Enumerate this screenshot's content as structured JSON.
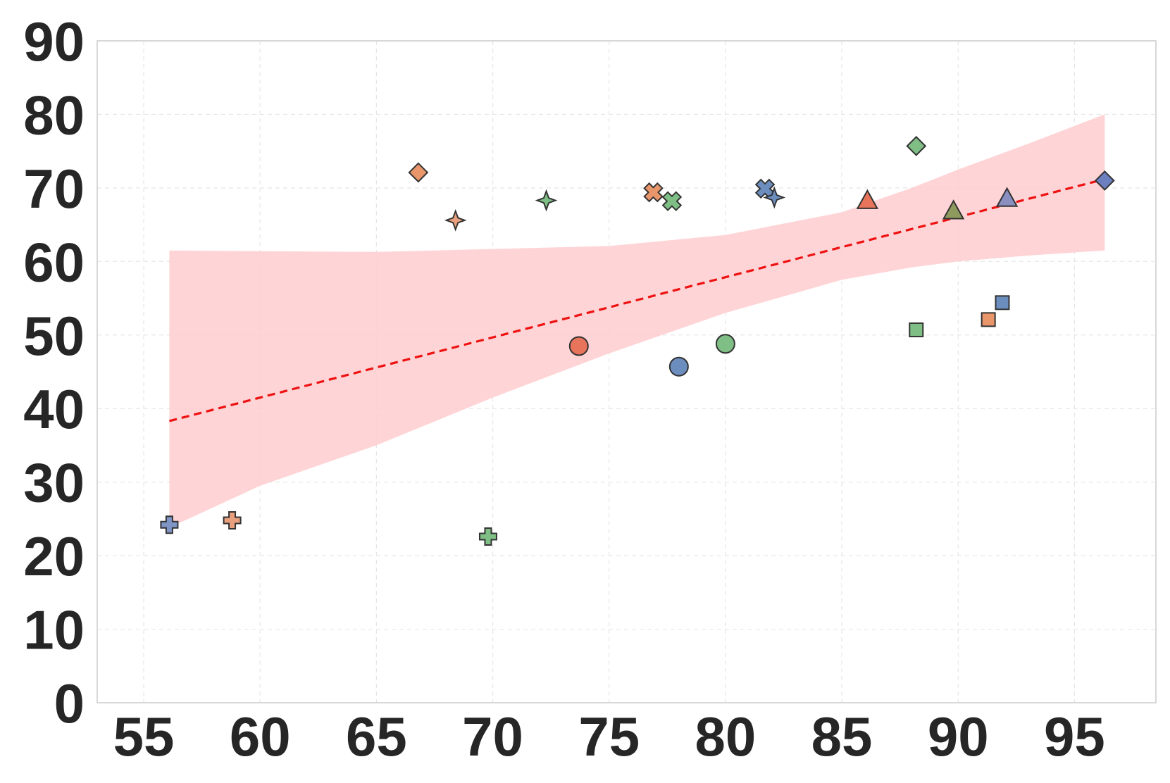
{
  "chart_data": {
    "type": "scatter",
    "title": "",
    "xlabel": "",
    "ylabel": "",
    "xlim": [
      53,
      98.5
    ],
    "ylim": [
      0,
      90
    ],
    "x_ticks": [
      "55",
      "60",
      "65",
      "70",
      "75",
      "80",
      "85",
      "90",
      "95"
    ],
    "y_ticks": [
      "0",
      "10",
      "20",
      "30",
      "40",
      "50",
      "60",
      "70",
      "80",
      "90"
    ],
    "grid": true,
    "legend": "none",
    "colors": {
      "blue": "#6c8ebf",
      "orange": "#e9966b",
      "green": "#7fbf85",
      "red": "#e8745b",
      "olive": "#8f9a5e",
      "purple": "#8a8fbf",
      "band": "#ffcccf",
      "trend": "#ee1111",
      "marker_edge": "#333333"
    },
    "points": [
      {
        "x": 56.1,
        "y": 24.2,
        "marker": "plus",
        "color": "#7f95c6"
      },
      {
        "x": 58.8,
        "y": 24.8,
        "marker": "plus",
        "color": "#e9a07e"
      },
      {
        "x": 69.8,
        "y": 22.6,
        "marker": "plus",
        "color": "#7fbf85"
      },
      {
        "x": 66.8,
        "y": 72.1,
        "marker": "diamond",
        "color": "#e9966b"
      },
      {
        "x": 68.4,
        "y": 65.6,
        "marker": "star4",
        "color": "#e9a07e"
      },
      {
        "x": 72.3,
        "y": 68.3,
        "marker": "star4",
        "color": "#7fbf85"
      },
      {
        "x": 73.7,
        "y": 48.5,
        "marker": "circle",
        "color": "#e8745b"
      },
      {
        "x": 76.9,
        "y": 69.4,
        "marker": "x",
        "color": "#e9966b"
      },
      {
        "x": 77.7,
        "y": 68.2,
        "marker": "x",
        "color": "#7fbf85"
      },
      {
        "x": 78.0,
        "y": 45.7,
        "marker": "circle",
        "color": "#6c8ebf"
      },
      {
        "x": 80.0,
        "y": 48.8,
        "marker": "circle",
        "color": "#7fbf85"
      },
      {
        "x": 81.7,
        "y": 69.9,
        "marker": "x",
        "color": "#6c8ebf"
      },
      {
        "x": 82.1,
        "y": 68.7,
        "marker": "star4",
        "color": "#6c8ebf"
      },
      {
        "x": 86.1,
        "y": 68.3,
        "marker": "triangle",
        "color": "#e8745b"
      },
      {
        "x": 88.2,
        "y": 75.7,
        "marker": "diamond",
        "color": "#7fbf85"
      },
      {
        "x": 88.2,
        "y": 50.7,
        "marker": "square",
        "color": "#7fbf85"
      },
      {
        "x": 89.8,
        "y": 66.9,
        "marker": "triangle",
        "color": "#8f9a5e"
      },
      {
        "x": 91.3,
        "y": 52.1,
        "marker": "square",
        "color": "#e9966b"
      },
      {
        "x": 91.9,
        "y": 54.4,
        "marker": "square",
        "color": "#6c8ebf"
      },
      {
        "x": 92.1,
        "y": 68.6,
        "marker": "triangle",
        "color": "#8a8fbf"
      },
      {
        "x": 96.3,
        "y": 71.0,
        "marker": "diamond",
        "color": "#6c7fbf"
      }
    ],
    "trend_line": {
      "x": [
        56.1,
        96.3
      ],
      "y": [
        38.3,
        71.2
      ],
      "style": "dashed"
    },
    "confidence_band": {
      "x": [
        56.1,
        60,
        65,
        70,
        75,
        80,
        85,
        88,
        90,
        93,
        96.3
      ],
      "upper": [
        61.5,
        61.4,
        61.3,
        61.7,
        62.1,
        63.6,
        66.7,
        70.0,
        72.5,
        76.0,
        80.0
      ],
      "lower": [
        23.8,
        29.5,
        35.0,
        41.5,
        47.5,
        53.0,
        57.5,
        59.2,
        60.0,
        60.8,
        61.5
      ]
    }
  }
}
